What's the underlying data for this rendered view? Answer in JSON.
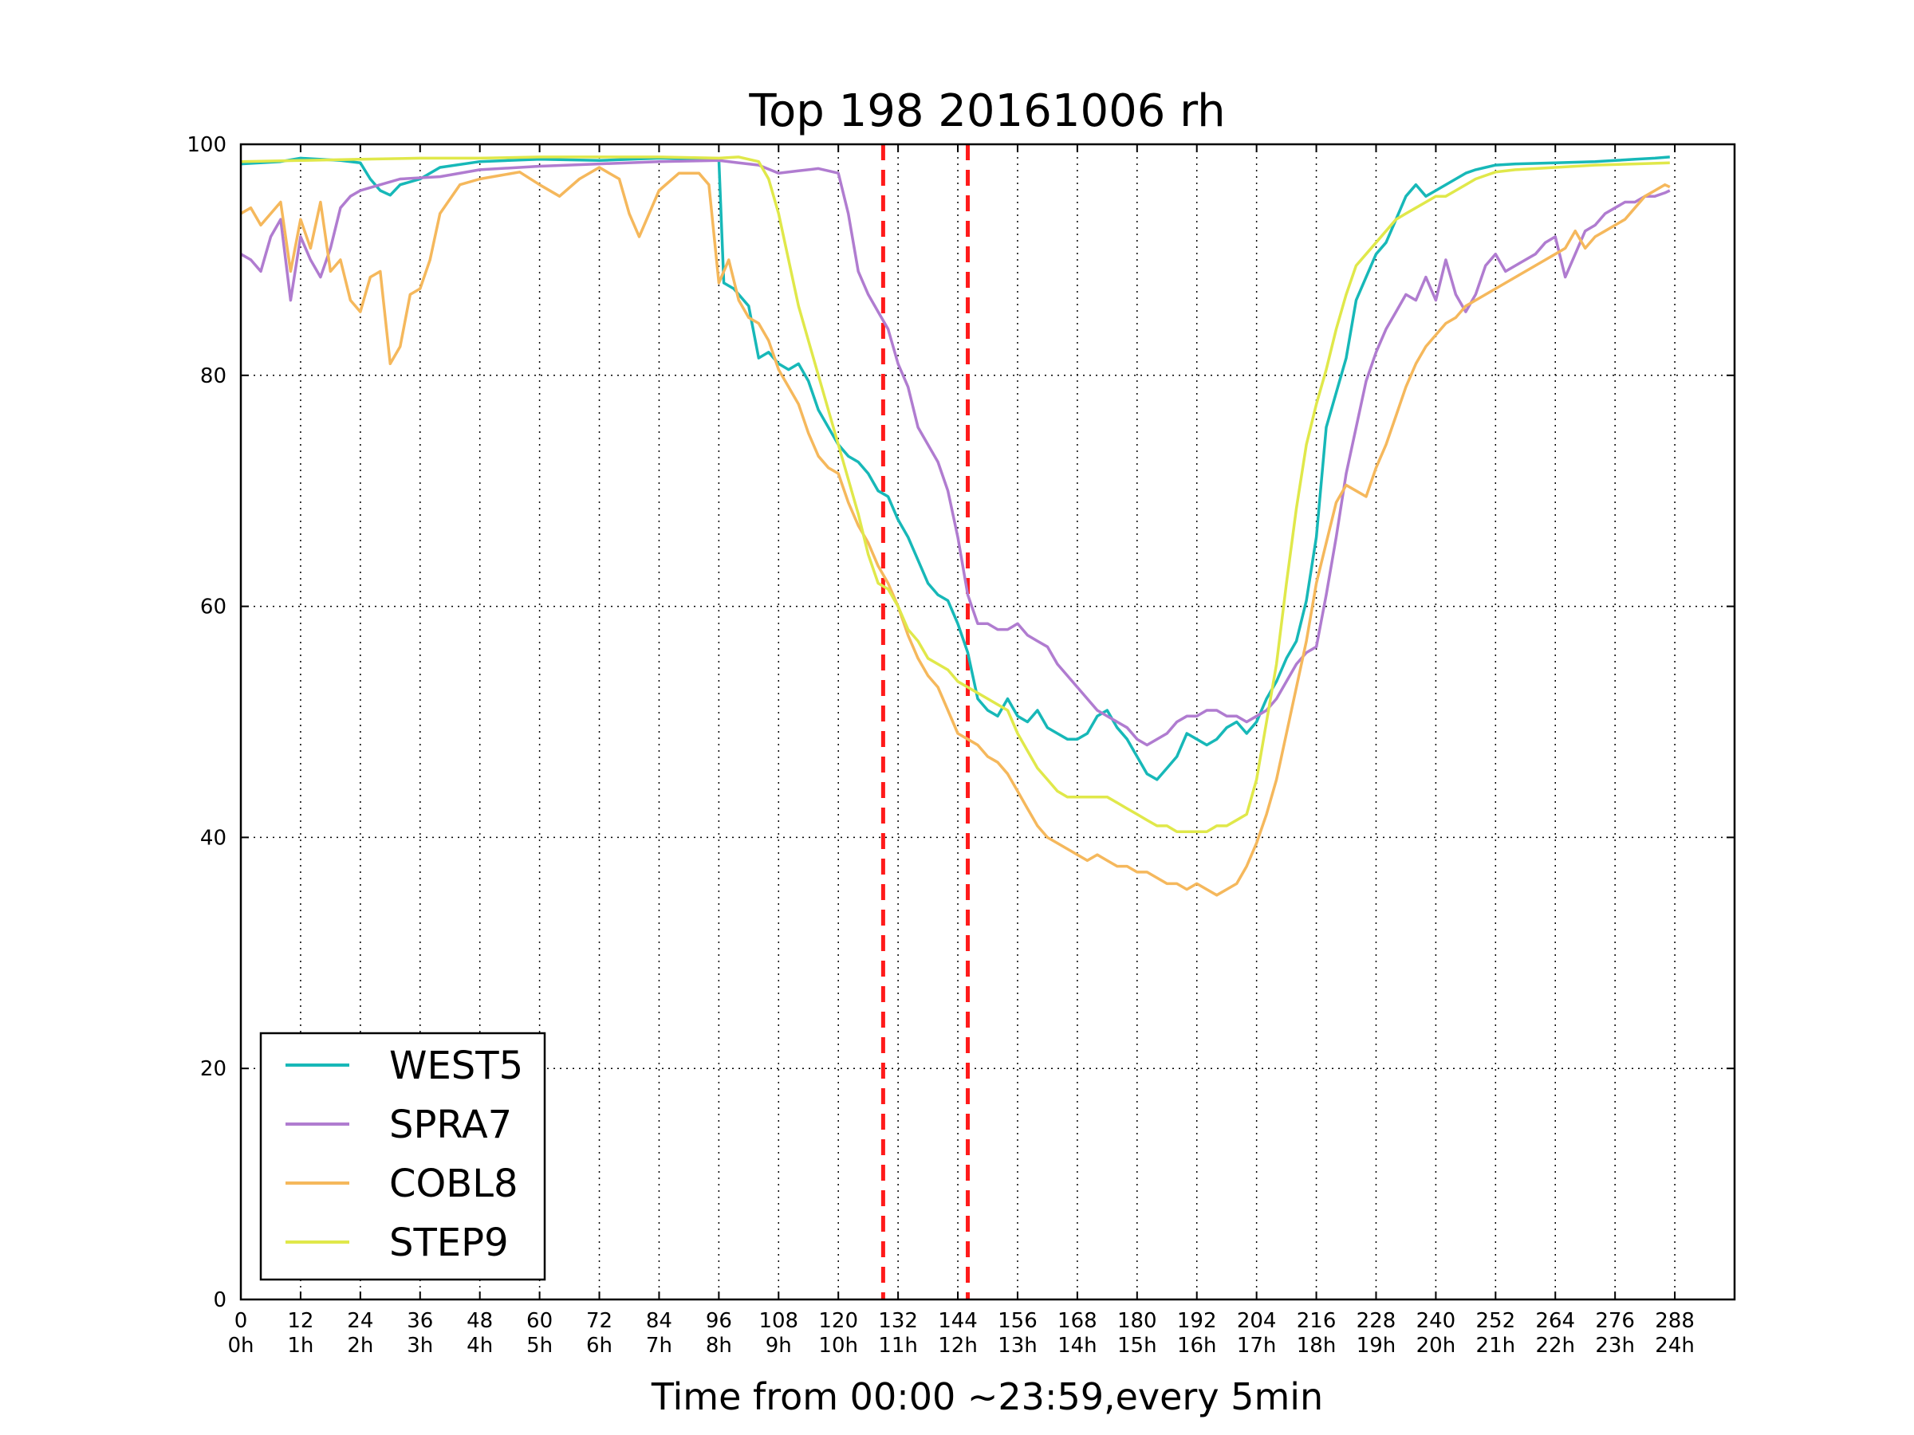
{
  "chart_data": {
    "type": "line",
    "title": "Top 198 20161006 rh",
    "xlabel": "Time from 00:00 ~23:59,every 5min",
    "ylabel": "",
    "xlim": [
      0,
      300
    ],
    "ylim": [
      0,
      100
    ],
    "grid": true,
    "legend_position": "lower-left",
    "y_ticks": [
      "0",
      "20",
      "40",
      "60",
      "80",
      "100"
    ],
    "y_tick_values": [
      0,
      20,
      40,
      60,
      80,
      100
    ],
    "x_tick_values": [
      0,
      12,
      24,
      36,
      48,
      60,
      72,
      84,
      96,
      108,
      120,
      132,
      144,
      156,
      168,
      180,
      192,
      204,
      216,
      228,
      240,
      252,
      264,
      276,
      288
    ],
    "x_ticks_top": [
      "0",
      "12",
      "24",
      "36",
      "48",
      "60",
      "72",
      "84",
      "96",
      "108",
      "120",
      "132",
      "144",
      "156",
      "168",
      "180",
      "192",
      "204",
      "216",
      "228",
      "240",
      "252",
      "264",
      "276",
      "288"
    ],
    "x_ticks_bottom": [
      "0h",
      "1h",
      "2h",
      "3h",
      "4h",
      "5h",
      "6h",
      "7h",
      "8h",
      "9h",
      "10h",
      "11h",
      "12h",
      "13h",
      "14h",
      "15h",
      "16h",
      "17h",
      "18h",
      "19h",
      "20h",
      "21h",
      "22h",
      "23h",
      "24h"
    ],
    "vlines": [
      {
        "x": 129,
        "color": "#ff1a1a",
        "style": "dashed"
      },
      {
        "x": 146,
        "color": "#ff1a1a",
        "style": "dashed"
      }
    ],
    "series": [
      {
        "name": "WEST5",
        "color": "#17b8b8",
        "x": [
          0,
          8,
          12,
          20,
          24,
          26,
          28,
          30,
          32,
          36,
          40,
          48,
          60,
          72,
          84,
          96,
          97,
          99,
          102,
          104,
          106,
          108,
          110,
          112,
          114,
          116,
          118,
          120,
          122,
          124,
          126,
          128,
          130,
          132,
          134,
          136,
          138,
          140,
          142,
          144,
          146,
          148,
          150,
          152,
          154,
          156,
          158,
          160,
          162,
          164,
          166,
          168,
          170,
          172,
          174,
          176,
          178,
          180,
          182,
          184,
          186,
          188,
          190,
          192,
          194,
          196,
          198,
          200,
          202,
          204,
          206,
          208,
          210,
          212,
          214,
          216,
          218,
          220,
          222,
          224,
          226,
          228,
          230,
          232,
          234,
          236,
          238,
          240,
          242,
          244,
          246,
          248,
          250,
          252,
          256,
          264,
          272,
          276,
          280,
          284,
          287
        ],
        "y": [
          98.3,
          98.5,
          98.8,
          98.6,
          98.4,
          97,
          96,
          95.6,
          96.5,
          97,
          98,
          98.5,
          98.7,
          98.6,
          98.8,
          98.7,
          88,
          87.5,
          86,
          81.5,
          82,
          81,
          80.5,
          81,
          79.5,
          77,
          75.5,
          74,
          73,
          72.5,
          71.5,
          70,
          69.5,
          67.5,
          66,
          64,
          62,
          61,
          60.5,
          58.5,
          56,
          52,
          51,
          50.5,
          52,
          50.5,
          50,
          51,
          49.5,
          49,
          48.5,
          48.5,
          49,
          50.5,
          51,
          49.5,
          48.5,
          47,
          45.5,
          45,
          46,
          47,
          49,
          48.5,
          48,
          48.5,
          49.5,
          50,
          49,
          50,
          52,
          53.5,
          55.5,
          57,
          60.5,
          66,
          75.5,
          78.5,
          81.5,
          86.5,
          88.5,
          90.5,
          91.5,
          93.5,
          95.5,
          96.5,
          95.5,
          96,
          96.5,
          97,
          97.5,
          97.8,
          98,
          98.2,
          98.3,
          98.4,
          98.5,
          98.6,
          98.7,
          98.8,
          98.9
        ]
      },
      {
        "name": "SPRA7",
        "color": "#b07cd0",
        "x": [
          0,
          2,
          4,
          6,
          8,
          10,
          12,
          14,
          16,
          18,
          20,
          22,
          24,
          28,
          32,
          40,
          48,
          60,
          72,
          84,
          96,
          100,
          104,
          108,
          112,
          116,
          120,
          122,
          124,
          126,
          128,
          130,
          132,
          134,
          136,
          138,
          140,
          142,
          144,
          146,
          148,
          150,
          152,
          154,
          156,
          158,
          160,
          162,
          164,
          166,
          168,
          170,
          172,
          174,
          176,
          178,
          180,
          182,
          184,
          186,
          188,
          190,
          192,
          194,
          196,
          198,
          200,
          202,
          204,
          206,
          208,
          210,
          212,
          214,
          216,
          218,
          220,
          222,
          224,
          226,
          228,
          230,
          232,
          234,
          236,
          238,
          240,
          242,
          244,
          246,
          248,
          250,
          252,
          254,
          256,
          258,
          260,
          262,
          264,
          266,
          268,
          270,
          272,
          274,
          276,
          278,
          280,
          282,
          284,
          286,
          287
        ],
        "y": [
          90.5,
          90,
          89,
          92,
          93.5,
          86.5,
          92,
          90,
          88.5,
          91,
          94.5,
          95.5,
          96,
          96.5,
          97,
          97.2,
          97.8,
          98.1,
          98.3,
          98.5,
          98.6,
          98.4,
          98.2,
          97.5,
          97.7,
          97.9,
          97.5,
          94,
          89,
          87,
          85.5,
          84,
          81,
          79,
          75.5,
          74,
          72.5,
          70,
          66,
          61,
          58.5,
          58.5,
          58,
          58,
          58.5,
          57.5,
          57,
          56.5,
          55,
          54,
          53,
          52,
          51,
          50.5,
          50,
          49.5,
          48.5,
          48,
          48.5,
          49,
          50,
          50.5,
          50.5,
          51,
          51,
          50.5,
          50.5,
          50,
          50.5,
          51,
          52,
          53.5,
          55,
          56,
          56.5,
          61,
          66,
          71.5,
          75.5,
          79.5,
          82,
          84,
          85.5,
          87,
          86.5,
          88.5,
          86.5,
          90,
          87,
          85.5,
          87,
          89.5,
          90.5,
          89,
          89.5,
          90,
          90.5,
          91.5,
          92,
          88.5,
          90.5,
          92.5,
          93,
          94,
          94.5,
          95,
          95,
          95.5,
          95.5,
          95.8,
          96
        ]
      },
      {
        "name": "COBL8",
        "color": "#f5b85c",
        "x": [
          0,
          2,
          4,
          6,
          8,
          10,
          12,
          14,
          16,
          18,
          20,
          22,
          24,
          26,
          28,
          30,
          32,
          34,
          36,
          38,
          40,
          44,
          48,
          52,
          56,
          60,
          64,
          68,
          72,
          76,
          78,
          80,
          84,
          88,
          92,
          94,
          96,
          98,
          100,
          102,
          104,
          106,
          108,
          110,
          112,
          114,
          116,
          118,
          120,
          122,
          124,
          126,
          128,
          130,
          132,
          134,
          136,
          138,
          140,
          142,
          144,
          146,
          148,
          150,
          152,
          154,
          156,
          158,
          160,
          162,
          164,
          166,
          168,
          170,
          172,
          174,
          176,
          178,
          180,
          182,
          184,
          186,
          188,
          190,
          192,
          194,
          196,
          198,
          200,
          202,
          204,
          206,
          208,
          210,
          212,
          214,
          216,
          218,
          220,
          222,
          224,
          226,
          228,
          230,
          232,
          234,
          236,
          238,
          240,
          242,
          244,
          246,
          248,
          250,
          252,
          254,
          256,
          258,
          260,
          262,
          264,
          266,
          268,
          270,
          272,
          274,
          276,
          278,
          280,
          282,
          284,
          286,
          287
        ],
        "y": [
          94,
          94.5,
          93,
          94,
          95,
          89,
          93.5,
          91,
          95,
          89,
          90,
          86.5,
          85.5,
          88.5,
          89,
          81,
          82.5,
          87,
          87.5,
          90,
          94,
          96.5,
          97,
          97.3,
          97.6,
          96.5,
          95.5,
          97,
          98,
          97,
          94,
          92,
          96,
          97.5,
          97.5,
          96.5,
          88,
          90,
          86.5,
          85,
          84.5,
          83,
          80.5,
          79,
          77.5,
          75,
          73,
          72,
          71.5,
          69,
          67,
          65.5,
          63.5,
          62,
          60,
          57.5,
          55.5,
          54,
          53,
          51,
          49,
          48.5,
          48,
          47,
          46.5,
          45.5,
          44,
          42.5,
          41,
          40,
          39.5,
          39,
          38.5,
          38,
          38.5,
          38,
          37.5,
          37.5,
          37,
          37,
          36.5,
          36,
          36,
          35.5,
          36,
          35.5,
          35,
          35.5,
          36,
          37.5,
          39.5,
          42,
          45,
          49,
          53,
          57,
          62,
          65.5,
          69,
          70.5,
          70,
          69.5,
          72,
          74,
          76.5,
          79,
          81,
          82.5,
          83.5,
          84.5,
          85,
          86,
          86.5,
          87,
          87.5,
          88,
          88.5,
          89,
          89.5,
          90,
          90.5,
          91,
          92.5,
          91,
          92,
          92.5,
          93,
          93.5,
          94.5,
          95.5,
          96,
          96.5,
          96.3
        ]
      },
      {
        "name": "STEP9",
        "color": "#e0e84a",
        "x": [
          0,
          12,
          24,
          36,
          48,
          60,
          72,
          84,
          96,
          100,
          104,
          106,
          108,
          110,
          112,
          114,
          116,
          118,
          120,
          122,
          124,
          126,
          128,
          130,
          132,
          134,
          136,
          138,
          140,
          142,
          144,
          146,
          148,
          150,
          152,
          154,
          156,
          158,
          160,
          162,
          164,
          166,
          168,
          170,
          172,
          174,
          176,
          178,
          180,
          182,
          184,
          186,
          188,
          190,
          192,
          194,
          196,
          198,
          200,
          202,
          204,
          206,
          208,
          210,
          212,
          214,
          216,
          218,
          220,
          222,
          224,
          226,
          228,
          230,
          232,
          234,
          236,
          238,
          240,
          242,
          244,
          246,
          248,
          250,
          252,
          256,
          264,
          272,
          280,
          287
        ],
        "y": [
          98.5,
          98.6,
          98.7,
          98.8,
          98.8,
          98.9,
          98.9,
          98.9,
          98.8,
          98.9,
          98.5,
          97,
          94,
          90,
          86,
          83,
          80,
          77,
          74,
          71,
          68,
          64.5,
          62,
          61.5,
          60,
          58,
          57,
          55.5,
          55,
          54.5,
          53.5,
          53,
          52.5,
          52,
          51.5,
          51,
          49,
          47.5,
          46,
          45,
          44,
          43.5,
          43.5,
          43.5,
          43.5,
          43.5,
          43,
          42.5,
          42,
          41.5,
          41,
          41,
          40.5,
          40.5,
          40.5,
          40.5,
          41,
          41,
          41.5,
          42,
          45,
          50,
          55,
          62,
          68.5,
          74,
          77.5,
          80.5,
          84,
          87,
          89.5,
          90.5,
          91.5,
          92.5,
          93.5,
          94,
          94.5,
          95,
          95.5,
          95.5,
          96,
          96.5,
          97,
          97.3,
          97.6,
          97.8,
          98,
          98.2,
          98.3,
          98.4
        ]
      }
    ]
  }
}
